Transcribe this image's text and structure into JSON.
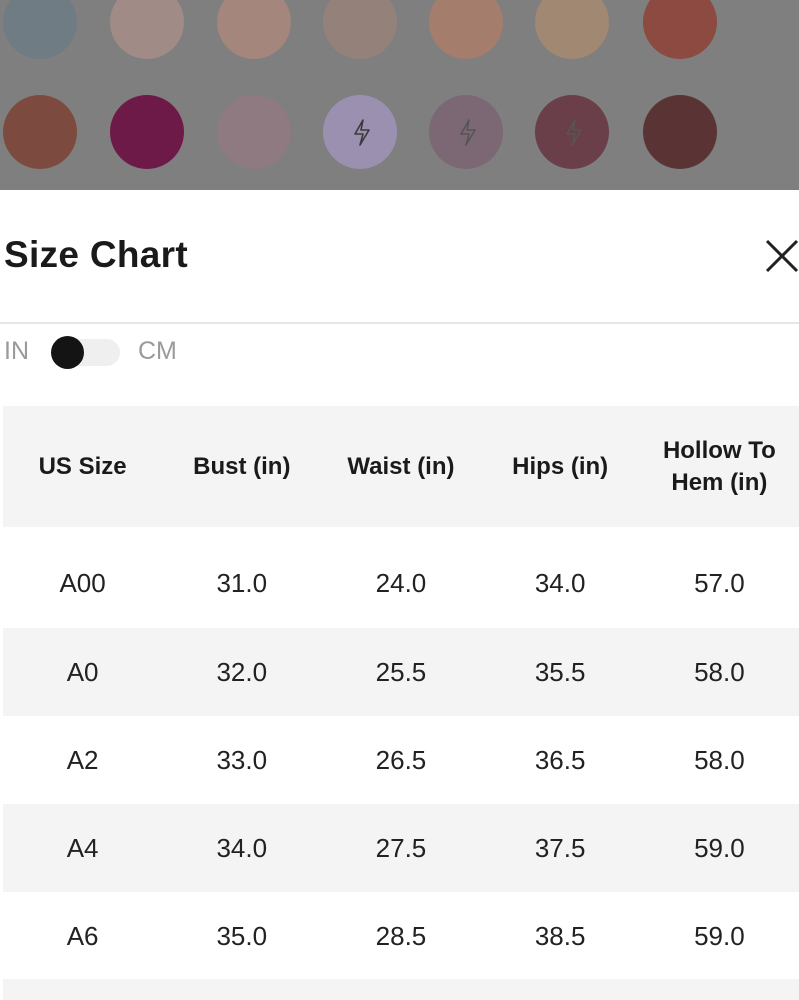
{
  "header": {
    "title": "Size Chart"
  },
  "unit_toggle": {
    "left_label": "IN",
    "right_label": "CM"
  },
  "table": {
    "columns": [
      "US Size",
      "Bust (in)",
      "Waist (in)",
      "Hips (in)",
      "Hollow To Hem (in)"
    ],
    "rows": [
      [
        "A00",
        "31.0",
        "24.0",
        "34.0",
        "57.0"
      ],
      [
        "A0",
        "32.0",
        "25.5",
        "35.5",
        "58.0"
      ],
      [
        "A2",
        "33.0",
        "26.5",
        "36.5",
        "58.0"
      ],
      [
        "A4",
        "34.0",
        "27.5",
        "37.5",
        "59.0"
      ],
      [
        "A6",
        "35.0",
        "28.5",
        "38.5",
        "59.0"
      ]
    ]
  }
}
